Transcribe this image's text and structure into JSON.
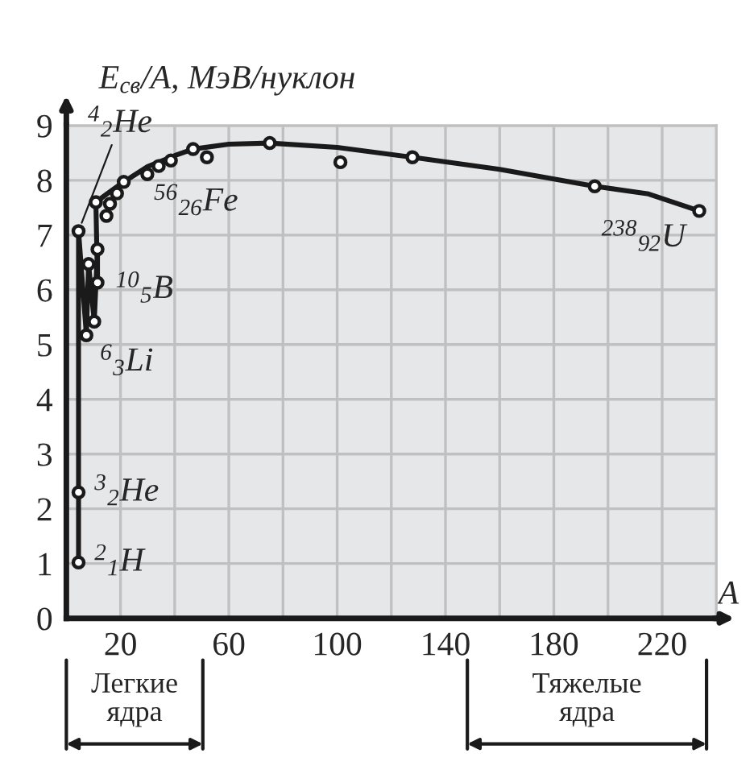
{
  "chart_data": {
    "type": "line",
    "xlabel": "A",
    "ylabel": "E$_{св}$/A, МэВ/нуклон",
    "series": [
      {
        "color": "#1a1a1a",
        "marker": "none",
        "line_style": "solid",
        "x": [
          4.5,
          4.5,
          4.5,
          7.4,
          8.2,
          10.3,
          11.5,
          11.5,
          10.9,
          15,
          21.2,
          30,
          40,
          46.8,
          60,
          75.1,
          100,
          127.8,
          160,
          195.1,
          215,
          233.7
        ],
        "values": [
          1.02,
          2.3,
          7.07,
          5.17,
          6.47,
          5.42,
          6.74,
          6.13,
          7.6,
          7.75,
          7.97,
          8.25,
          8.45,
          8.57,
          8.66,
          8.68,
          8.6,
          8.42,
          8.2,
          7.89,
          7.75,
          7.44
        ]
      },
      {
        "type": "scatter",
        "color": "#1a1a1a",
        "marker": "circle",
        "x": [
          4.5,
          4.5,
          4.5,
          7.4,
          8.2,
          10.3,
          11.5,
          11.5,
          10.9,
          14.8,
          16.1,
          18.7,
          21.2,
          29.9,
          34.1,
          38.6,
          46.8,
          51.9,
          75.1,
          101.2,
          127.8,
          195.1,
          233.7
        ],
        "values": [
          1.02,
          2.3,
          7.07,
          5.17,
          6.47,
          5.42,
          6.74,
          6.13,
          7.6,
          7.35,
          7.57,
          7.76,
          7.97,
          8.11,
          8.26,
          8.36,
          8.57,
          8.42,
          8.68,
          8.33,
          8.42,
          7.89,
          7.44
        ]
      }
    ],
    "xlim": [
      0,
      240
    ],
    "ylim": [
      0,
      9
    ],
    "xticks": [
      20,
      {
        "value": 40,
        "label": null
      },
      60,
      {
        "value": 80,
        "label": null
      },
      100,
      {
        "value": 120,
        "label": null
      },
      140,
      {
        "value": 160,
        "label": null
      },
      180,
      {
        "value": 200,
        "label": null
      },
      220
    ],
    "yticks": [
      0,
      1,
      2,
      3,
      4,
      5,
      6,
      7,
      8,
      9
    ],
    "grid": true,
    "annotations": [
      {
        "text": "$^{4}$$_{2}$He",
        "x": 4.5,
        "y": 7.07
      },
      {
        "text": "$^{3}$$_{2}$He",
        "x": 4.5,
        "y": 2.3
      },
      {
        "text": "$^{2}$$_{1}$H",
        "x": 4.5,
        "y": 1.02
      },
      {
        "text": "$^{6}$$_{3}$Li",
        "x": 7.4,
        "y": 5.17
      },
      {
        "text": "$^{10}$$_{5}$B",
        "x": 11.5,
        "y": 6.13
      },
      {
        "text": "$^{56}$$_{26}$Fe",
        "x": 51.9,
        "y": 8.42
      },
      {
        "text": "$^{238}$$_{92}$U",
        "x": 233.7,
        "y": 7.44
      },
      "Легкие\nядра",
      "Тяжелые\nядра"
    ]
  }
}
